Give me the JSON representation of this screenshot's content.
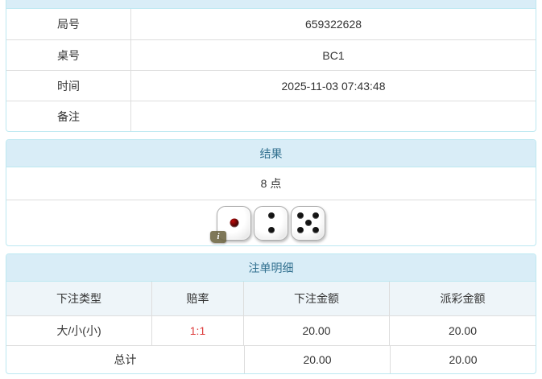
{
  "colors": {
    "panel_border": "#bce8f1",
    "panel_header_bg": "#d9edf7",
    "panel_header_text": "#31708f",
    "cell_border": "#dddddd",
    "body_text": "#333333",
    "odds_red": "#dd3c3c",
    "column_header_bg": "#eef5f9",
    "black_pip": "#1c1c1c",
    "red_pip": "#c00a0a"
  },
  "info_table": {
    "rows": [
      {
        "label": "局号",
        "value": "659322628"
      },
      {
        "label": "桌号",
        "value": "BC1"
      },
      {
        "label": "时间",
        "value": "2025-11-03 07:43:48"
      },
      {
        "label": "备注",
        "value": ""
      }
    ]
  },
  "result_panel": {
    "title": "结果",
    "points": "8 点",
    "dice": [
      {
        "value": 1,
        "pip_color": "#c00a0a"
      },
      {
        "value": 2,
        "pip_color": "#1c1c1c"
      },
      {
        "value": 5,
        "pip_color": "#1c1c1c"
      }
    ],
    "info_icon_glyph": "i"
  },
  "bets_panel": {
    "title": "注单明细",
    "columns": [
      "下注类型",
      "赔率",
      "下注金额",
      "派彩金额"
    ],
    "rows": [
      {
        "bet_type": "大/小(小)",
        "odds": "1:1",
        "bet_amount": "20.00",
        "payout": "20.00"
      }
    ],
    "total": {
      "label": "总计",
      "bet_amount": "20.00",
      "payout": "20.00"
    }
  }
}
